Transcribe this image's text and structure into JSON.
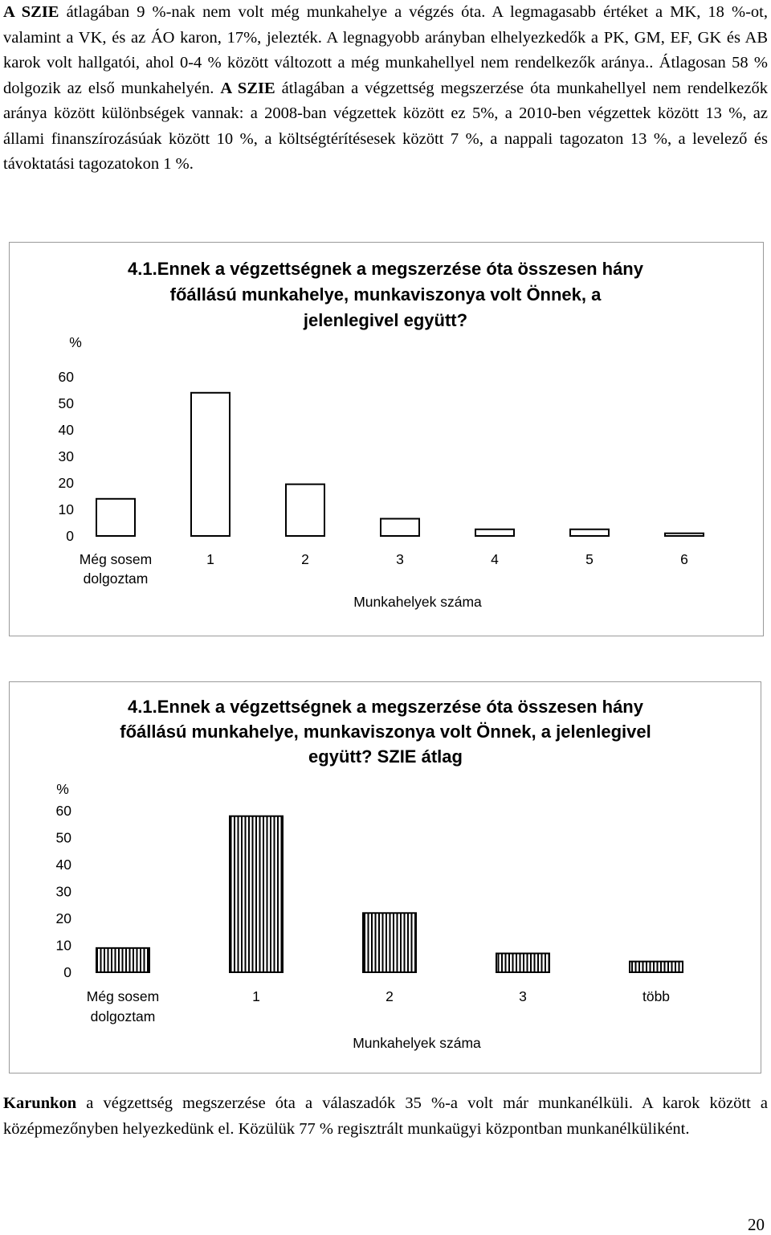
{
  "paragraphs": {
    "p1": {
      "lead": "A SZIE",
      "text": " átlagában 9 %-nak nem volt még munkahelye a végzés óta. A legmagasabb értéket a MK, 18 %-ot, valamint a VK, és az ÁO karon, 17%, jelezték. A legnagyobb arányban elhelyezkedők a PK, GM, EF, GK és AB karok volt hallgatói, ahol 0-4 % között változott a még munkahellyel nem rendelkezők aránya.. Átlagosan 58 % dolgozik az első munkahelyén.",
      "lead2": "A SZIE",
      "text2": " átlagában a végzettség megszerzése óta munkahellyel nem rendelkezők aránya között különbségek vannak: a 2008-ban végzettek között ez 5%, a 2010-ben végzettek között 13 %, az állami finanszírozásúak között 10 %, a költségtérítésesek között 7 %, a nappali tagozaton 13 %, a levelező és távoktatási tagozatokon 1 %."
    },
    "p3": {
      "lead": "Karunkon",
      "text": " a végzettség megszerzése óta a válaszadók 35 %-a volt már munkanélküli. A karok között a középmezőnyben helyezkedünk el. Közülük 77 % regisztrált munkaügyi központban munkanélküliként."
    }
  },
  "chart_data": [
    {
      "type": "bar",
      "title": [
        "4.1.Ennek a végzettségnek a megszerzése óta összesen hány",
        "főállású munkahelye, munkaviszonya volt Önnek, a",
        "jelenlegivel együtt?"
      ],
      "ylabel": "%",
      "xlabel": "Munkahelyek száma",
      "categories": [
        "Még sosem dolgoztam",
        "1",
        "2",
        "3",
        "4",
        "5",
        "6"
      ],
      "category_lines": [
        [
          "Még sosem",
          "dolgoztam"
        ],
        [
          "1"
        ],
        [
          "2"
        ],
        [
          "3"
        ],
        [
          "4"
        ],
        [
          "5"
        ],
        [
          "6"
        ]
      ],
      "values": [
        14,
        54,
        19.5,
        6.5,
        2.5,
        2.5,
        1
      ],
      "ylim": [
        0,
        60
      ],
      "yticks": [
        "0",
        "10",
        "20",
        "30",
        "40",
        "50",
        "60"
      ],
      "bar_fill": "plain",
      "grid": false
    },
    {
      "type": "bar",
      "title": [
        "4.1.Ennek a végzettségnek a megszerzése óta összesen hány",
        "főállású munkahelye, munkaviszonya volt Önnek, a jelenlegivel",
        "együtt? SZIE átlag"
      ],
      "ylabel": "%",
      "xlabel": "Munkahelyek száma",
      "categories": [
        "Még sosem dolgoztam",
        "1",
        "2",
        "3",
        "több"
      ],
      "category_lines": [
        [
          "Még sosem",
          "dolgoztam"
        ],
        [
          "1"
        ],
        [
          "2"
        ],
        [
          "3"
        ],
        [
          "több"
        ]
      ],
      "values": [
        9,
        58,
        22,
        7,
        4
      ],
      "ylim": [
        0,
        60
      ],
      "yticks": [
        "0",
        "10",
        "20",
        "30",
        "40",
        "50",
        "60"
      ],
      "bar_fill": "vertical-hatch",
      "grid": false
    }
  ],
  "page_number": "20"
}
